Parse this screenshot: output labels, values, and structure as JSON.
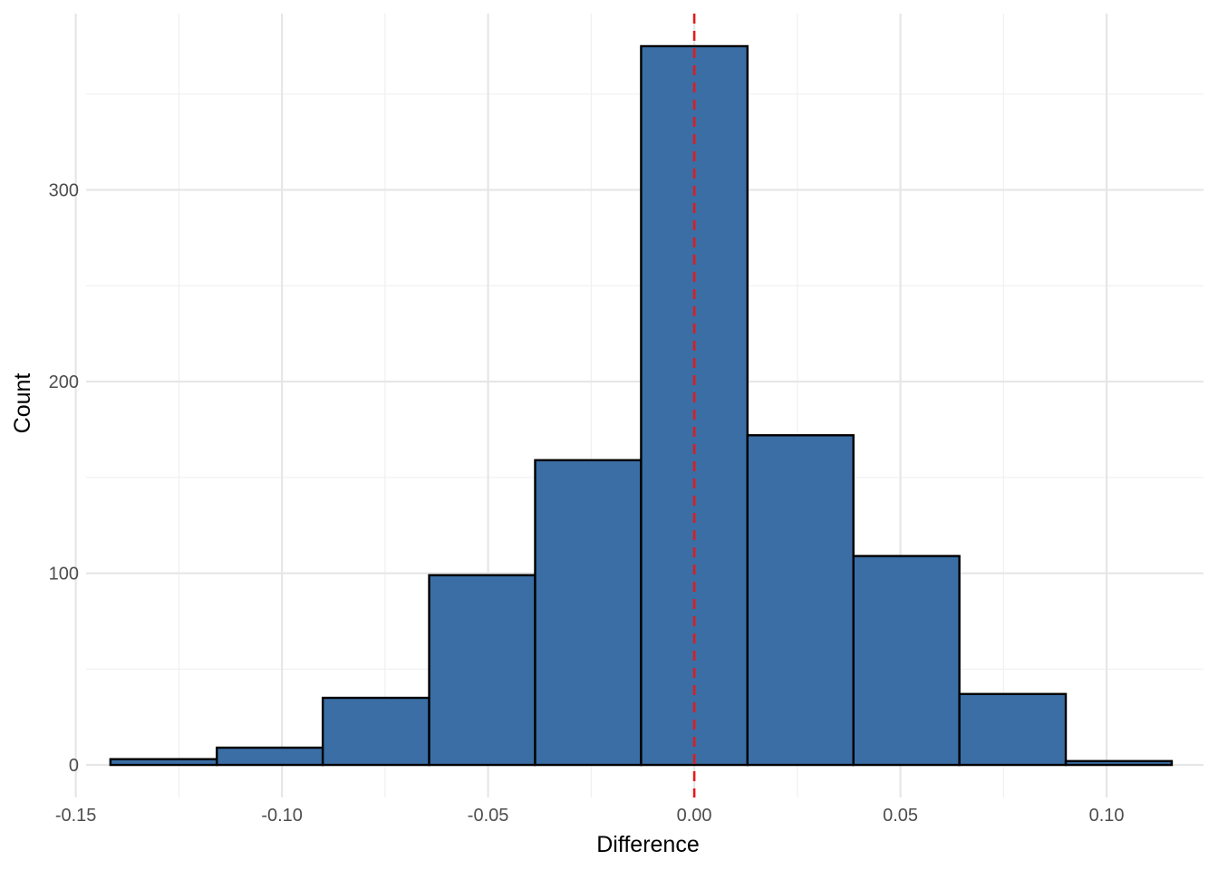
{
  "chart_data": {
    "type": "bar",
    "subtype": "histogram",
    "title": "",
    "xlabel": "Difference",
    "ylabel": "Count",
    "xlim": [
      -0.1475,
      0.1235
    ],
    "ylim": [
      -17,
      392
    ],
    "x_ticks": [
      {
        "value": -0.15,
        "label": "-0.15"
      },
      {
        "value": -0.1,
        "label": "-0.10"
      },
      {
        "value": -0.05,
        "label": "-0.05"
      },
      {
        "value": 0.0,
        "label": "0.00"
      },
      {
        "value": 0.05,
        "label": "0.05"
      },
      {
        "value": 0.1,
        "label": "0.10"
      }
    ],
    "y_ticks": [
      {
        "value": 0,
        "label": "0"
      },
      {
        "value": 100,
        "label": "100"
      },
      {
        "value": 200,
        "label": "200"
      },
      {
        "value": 300,
        "label": "300"
      }
    ],
    "bins": [
      {
        "x0": -0.1416,
        "x1": -0.1158,
        "count": 3
      },
      {
        "x0": -0.1158,
        "x1": -0.0901,
        "count": 9
      },
      {
        "x0": -0.0901,
        "x1": -0.0643,
        "count": 35
      },
      {
        "x0": -0.0643,
        "x1": -0.0386,
        "count": 99
      },
      {
        "x0": -0.0386,
        "x1": -0.0129,
        "count": 159
      },
      {
        "x0": -0.0129,
        "x1": 0.0129,
        "count": 375
      },
      {
        "x0": 0.0129,
        "x1": 0.0386,
        "count": 172
      },
      {
        "x0": 0.0386,
        "x1": 0.0643,
        "count": 109
      },
      {
        "x0": 0.0643,
        "x1": 0.0901,
        "count": 37
      },
      {
        "x0": 0.0901,
        "x1": 0.1158,
        "count": 2
      }
    ],
    "reference_line": {
      "x": 0,
      "style": "dashed"
    },
    "colors": {
      "bar_fill": "#3a6ea5",
      "bar_stroke": "#000000",
      "reference_line": "#e41a1c"
    },
    "grid": true,
    "legend": "none"
  }
}
